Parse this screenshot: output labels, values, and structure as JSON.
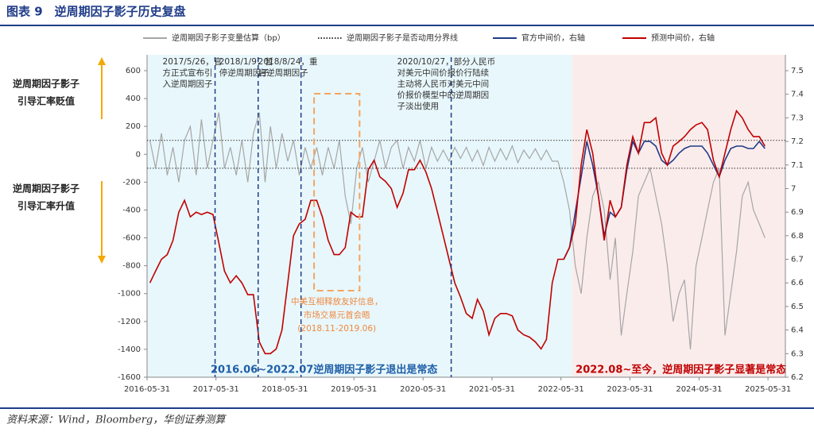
{
  "header": {
    "title": "图表 9　逆周期因子影子历史复盘"
  },
  "footer": {
    "source": "资料来源：Wind，Bloomberg，华创证券测算"
  },
  "chart_data": {
    "type": "line",
    "x": [
      "2016-06-15",
      "2016-07-15",
      "2016-08-15",
      "2016-09-15",
      "2016-10-15",
      "2016-11-15",
      "2016-12-15",
      "2017-01-15",
      "2017-02-15",
      "2017-03-15",
      "2017-04-15",
      "2017-05-15",
      "2017-06-15",
      "2017-07-15",
      "2017-08-15",
      "2017-09-15",
      "2017-10-15",
      "2017-11-15",
      "2017-12-15",
      "2018-01-15",
      "2018-02-15",
      "2018-03-15",
      "2018-04-15",
      "2018-05-15",
      "2018-06-15",
      "2018-07-15",
      "2018-08-15",
      "2018-09-15",
      "2018-10-15",
      "2018-11-15",
      "2018-12-15",
      "2019-01-15",
      "2019-02-15",
      "2019-03-15",
      "2019-04-15",
      "2019-05-15",
      "2019-06-15",
      "2019-07-15",
      "2019-08-15",
      "2019-09-15",
      "2019-10-15",
      "2019-11-15",
      "2019-12-15",
      "2020-01-15",
      "2020-02-15",
      "2020-03-15",
      "2020-04-15",
      "2020-05-15",
      "2020-06-15",
      "2020-07-15",
      "2020-08-15",
      "2020-09-15",
      "2020-10-15",
      "2020-11-15",
      "2020-12-15",
      "2021-01-15",
      "2021-02-15",
      "2021-03-15",
      "2021-04-15",
      "2021-05-15",
      "2021-06-15",
      "2021-07-15",
      "2021-08-15",
      "2021-09-15",
      "2021-10-15",
      "2021-11-15",
      "2021-12-15",
      "2022-01-15",
      "2022-02-15",
      "2022-03-15",
      "2022-04-15",
      "2022-05-15",
      "2022-06-15",
      "2022-07-15",
      "2022-08-15",
      "2022-09-15",
      "2022-10-15",
      "2022-11-15",
      "2022-12-15",
      "2023-01-15",
      "2023-02-15",
      "2023-03-15",
      "2023-04-15",
      "2023-05-15",
      "2023-06-15",
      "2023-07-15",
      "2023-08-15",
      "2023-09-15",
      "2023-10-15",
      "2023-11-15",
      "2023-12-15",
      "2024-01-15",
      "2024-02-15",
      "2024-03-15",
      "2024-04-15",
      "2024-05-15",
      "2024-06-15",
      "2024-07-15",
      "2024-08-15",
      "2024-09-15",
      "2024-10-15",
      "2024-11-15",
      "2024-12-15",
      "2025-01-15",
      "2025-02-15",
      "2025-03-15",
      "2025-04-15",
      "2025-05-15"
    ],
    "series": [
      {
        "name": "逆周期因子影子变量估算（bp）",
        "color": "#a6a6a6",
        "values": [
          100,
          -100,
          150,
          -150,
          50,
          -200,
          100,
          200,
          -150,
          250,
          -100,
          100,
          300,
          -100,
          50,
          -150,
          100,
          -200,
          150,
          300,
          -200,
          200,
          -100,
          150,
          -50,
          100,
          -150,
          50,
          -100,
          50,
          -150,
          50,
          -100,
          100,
          -300,
          -500,
          -100,
          50,
          -200,
          -50,
          100,
          -100,
          50,
          100,
          -100,
          50,
          -50,
          100,
          -100,
          50,
          -50,
          30,
          -50,
          50,
          -30,
          50,
          -50,
          30,
          -80,
          50,
          -50,
          40,
          -40,
          60,
          -60,
          30,
          -30,
          40,
          -40,
          30,
          -50,
          -50,
          -200,
          -400,
          -800,
          -1000,
          -600,
          -300,
          -200,
          -400,
          -900,
          -600,
          -1300,
          -1000,
          -700,
          -300,
          -200,
          -100,
          -300,
          -500,
          -800,
          -1200,
          -1000,
          -900,
          -1400,
          -800,
          -600,
          -400,
          -200,
          -100,
          -1300,
          -1000,
          -700,
          -300,
          -200,
          -400,
          -500,
          -600
        ]
      },
      {
        "name": "官方中间价，右轴",
        "color": "#1f3c88",
        "axis": "y2",
        "values": [
          null,
          null,
          null,
          null,
          null,
          null,
          null,
          null,
          null,
          null,
          null,
          null,
          null,
          null,
          null,
          null,
          null,
          null,
          null,
          null,
          null,
          null,
          null,
          null,
          null,
          null,
          null,
          null,
          null,
          null,
          null,
          null,
          null,
          null,
          null,
          null,
          null,
          null,
          null,
          null,
          null,
          null,
          null,
          null,
          null,
          null,
          null,
          null,
          null,
          null,
          null,
          null,
          null,
          null,
          null,
          null,
          null,
          null,
          null,
          null,
          null,
          null,
          null,
          null,
          null,
          null,
          null,
          null,
          null,
          null,
          null,
          null,
          6.7,
          6.75,
          6.9,
          7.05,
          7.2,
          7.1,
          6.97,
          6.8,
          6.9,
          6.88,
          6.92,
          7.08,
          7.2,
          7.15,
          7.2,
          7.2,
          7.18,
          7.12,
          7.1,
          7.12,
          7.15,
          7.17,
          7.18,
          7.18,
          7.18,
          7.15,
          7.1,
          7.05,
          7.12,
          7.17,
          7.18,
          7.18,
          7.17,
          7.17,
          7.2,
          7.17
        ]
      },
      {
        "name": "预测中间价，右轴",
        "color": "#c00000",
        "axis": "y2",
        "values": [
          6.6,
          6.65,
          6.7,
          6.72,
          6.78,
          6.9,
          6.95,
          6.88,
          6.9,
          6.89,
          6.9,
          6.89,
          6.77,
          6.65,
          6.6,
          6.63,
          6.6,
          6.55,
          6.55,
          6.35,
          6.3,
          6.3,
          6.32,
          6.4,
          6.6,
          6.8,
          6.85,
          6.87,
          6.95,
          6.95,
          6.88,
          6.78,
          6.72,
          6.72,
          6.75,
          6.9,
          6.88,
          6.88,
          7.08,
          7.12,
          7.05,
          7.03,
          7.0,
          6.92,
          6.98,
          7.08,
          7.08,
          7.12,
          7.07,
          7.0,
          6.9,
          6.8,
          6.7,
          6.6,
          6.54,
          6.47,
          6.45,
          6.53,
          6.48,
          6.38,
          6.45,
          6.47,
          6.47,
          6.46,
          6.4,
          6.38,
          6.37,
          6.35,
          6.32,
          6.36,
          6.6,
          6.7,
          6.7,
          6.75,
          6.85,
          7.1,
          7.25,
          7.15,
          6.97,
          6.78,
          6.95,
          6.88,
          6.92,
          7.1,
          7.22,
          7.15,
          7.28,
          7.28,
          7.3,
          7.15,
          7.1,
          7.18,
          7.2,
          7.22,
          7.25,
          7.27,
          7.28,
          7.25,
          7.12,
          7.05,
          7.15,
          7.25,
          7.33,
          7.3,
          7.25,
          7.22,
          7.22,
          7.18
        ]
      }
    ],
    "threshold": {
      "name": "逆周期因子影子是否动用分界线",
      "color": "#333333",
      "values": [
        100,
        -100
      ]
    },
    "xlim": [
      "2016-05-31",
      "2025-08-31"
    ],
    "xticks": [
      "2016-05-31",
      "2017-05-31",
      "2018-05-31",
      "2019-05-31",
      "2020-05-31",
      "2021-05-31",
      "2022-05-31",
      "2023-05-31",
      "2024-05-31",
      "2025-05-31"
    ],
    "ylim": [
      -1600,
      600
    ],
    "yticks": [
      -1600,
      -1400,
      -1200,
      -1000,
      -800,
      -600,
      -400,
      -200,
      0,
      200,
      400,
      600
    ],
    "y2lim": [
      6.2,
      7.5
    ],
    "y2ticks": [
      6.2,
      6.3,
      6.4,
      6.5,
      6.6,
      6.7,
      6.8,
      6.9,
      7,
      7.1,
      7.2,
      7.3,
      7.4,
      7.5
    ],
    "regions": [
      {
        "from": "2016-05-31",
        "to": "2022-07-31",
        "color": "#e8f7fb",
        "text_color": "#1f5fa8",
        "label": "2016.06~2022.07逆周期因子影子退出是常态"
      },
      {
        "from": "2022-07-31",
        "to": "2025-08-31",
        "color": "#fbecec",
        "text_color": "#c00000",
        "label": "2022.08~至今，逆周期因子影子显著是常态"
      }
    ],
    "events": [
      {
        "date": "2017-05-26",
        "lines": [
          "2017/5/26，官",
          "方正式宣布引",
          "入逆周期因子"
        ]
      },
      {
        "date": "2018-01-09",
        "lines": [
          "2018/1/9，暂",
          "停逆周期因子"
        ]
      },
      {
        "date": "2018-08-24",
        "lines": [
          "2018/8/24，重",
          "启逆周期因子"
        ]
      },
      {
        "date": "2020-10-27",
        "lines": [
          "2020/10/27，部分人民币",
          "对美元中间价报价行陆续",
          "主动将人民币对美元中间",
          "价报价模型中的逆周期因",
          "子淡出使用"
        ]
      }
    ],
    "period": {
      "from": "2018-11-01",
      "to": "2019-06-30",
      "lines": [
        "中美互相释放友好信息，",
        "市场交易元首会晤",
        "(2018.11-2019.06)"
      ]
    },
    "side_notes": [
      {
        "lines": [
          "逆周期因子影子",
          "引导汇率贬值"
        ]
      },
      {
        "lines": [
          "逆周期因子影子",
          "引导汇率升值"
        ]
      }
    ]
  }
}
